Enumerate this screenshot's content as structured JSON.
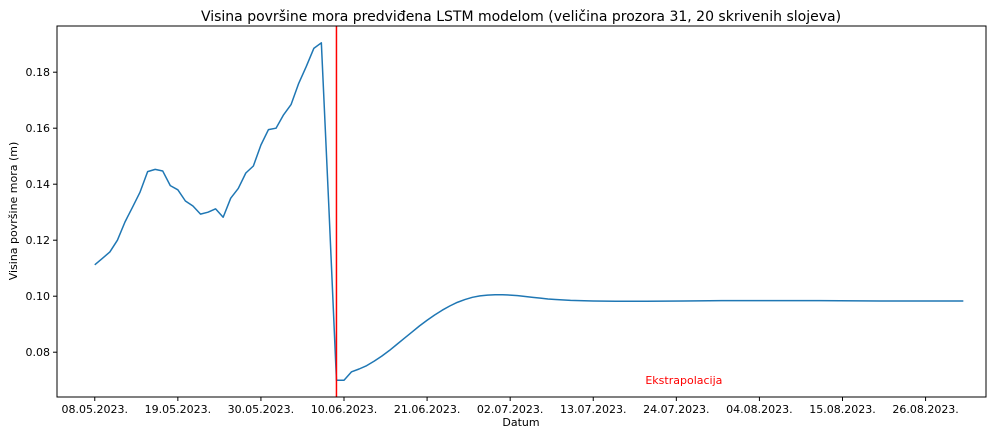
{
  "chart_data": {
    "type": "line",
    "title": "Visina površine mora predviđena LSTM modelom (veličina prozora 31, 20 skrivenih slojeva)",
    "xlabel": "Datum",
    "ylabel": "Visina površine mora (m)",
    "xlim": [
      "2023-05-03",
      "2023-09-03"
    ],
    "ylim": [
      0.064,
      0.1965
    ],
    "x_ticks": [
      {
        "date": "2023-05-08",
        "label": "08.05.2023."
      },
      {
        "date": "2023-05-19",
        "label": "19.05.2023."
      },
      {
        "date": "2023-05-30",
        "label": "30.05.2023."
      },
      {
        "date": "2023-06-10",
        "label": "10.06.2023."
      },
      {
        "date": "2023-06-21",
        "label": "21.06.2023."
      },
      {
        "date": "2023-07-02",
        "label": "02.07.2023."
      },
      {
        "date": "2023-07-13",
        "label": "13.07.2023."
      },
      {
        "date": "2023-07-24",
        "label": "24.07.2023."
      },
      {
        "date": "2023-08-04",
        "label": "04.08.2023."
      },
      {
        "date": "2023-08-15",
        "label": "15.08.2023."
      },
      {
        "date": "2023-08-26",
        "label": "26.08.2023."
      }
    ],
    "y_ticks": [
      {
        "value": 0.08,
        "label": "0.08"
      },
      {
        "value": 0.1,
        "label": "0.10"
      },
      {
        "value": 0.12,
        "label": "0.12"
      },
      {
        "value": 0.14,
        "label": "0.14"
      },
      {
        "value": 0.16,
        "label": "0.16"
      },
      {
        "value": 0.18,
        "label": "0.18"
      }
    ],
    "line_color": "#1f77b4",
    "series": [
      {
        "points": [
          [
            "2023-05-08",
            0.1112
          ],
          [
            "2023-05-09",
            0.1135
          ],
          [
            "2023-05-10",
            0.1158
          ],
          [
            "2023-05-11",
            0.12
          ],
          [
            "2023-05-12",
            0.1265
          ],
          [
            "2023-05-13",
            0.1318
          ],
          [
            "2023-05-14",
            0.1372
          ],
          [
            "2023-05-15",
            0.1445
          ],
          [
            "2023-05-16",
            0.1453
          ],
          [
            "2023-05-17",
            0.1447
          ],
          [
            "2023-05-18",
            0.1395
          ],
          [
            "2023-05-19",
            0.138
          ],
          [
            "2023-05-20",
            0.134
          ],
          [
            "2023-05-21",
            0.1322
          ],
          [
            "2023-05-22",
            0.1293
          ],
          [
            "2023-05-23",
            0.13
          ],
          [
            "2023-05-24",
            0.1312
          ],
          [
            "2023-05-25",
            0.1282
          ],
          [
            "2023-05-26",
            0.135
          ],
          [
            "2023-05-27",
            0.1385
          ],
          [
            "2023-05-28",
            0.144
          ],
          [
            "2023-05-29",
            0.1465
          ],
          [
            "2023-05-30",
            0.154
          ],
          [
            "2023-05-31",
            0.1595
          ],
          [
            "2023-06-01",
            0.16
          ],
          [
            "2023-06-02",
            0.1648
          ],
          [
            "2023-06-03",
            0.1685
          ],
          [
            "2023-06-04",
            0.176
          ],
          [
            "2023-06-05",
            0.182
          ],
          [
            "2023-06-06",
            0.1885
          ],
          [
            "2023-06-07",
            0.1905
          ],
          [
            "2023-06-08",
            0.1315
          ],
          [
            "2023-06-09",
            0.07
          ],
          [
            "2023-06-10",
            0.07
          ],
          [
            "2023-06-11",
            0.073
          ],
          [
            "2023-06-12",
            0.074
          ],
          [
            "2023-06-13",
            0.0752
          ],
          [
            "2023-06-14",
            0.0768
          ],
          [
            "2023-06-15",
            0.0786
          ],
          [
            "2023-06-16",
            0.0806
          ],
          [
            "2023-06-17",
            0.0828
          ],
          [
            "2023-06-18",
            0.085
          ],
          [
            "2023-06-19",
            0.0872
          ],
          [
            "2023-06-20",
            0.0894
          ],
          [
            "2023-06-21",
            0.0914
          ],
          [
            "2023-06-22",
            0.0933
          ],
          [
            "2023-06-23",
            0.095
          ],
          [
            "2023-06-24",
            0.0965
          ],
          [
            "2023-06-25",
            0.0978
          ],
          [
            "2023-06-26",
            0.0988
          ],
          [
            "2023-06-27",
            0.0996
          ],
          [
            "2023-06-28",
            0.1001
          ],
          [
            "2023-06-29",
            0.1004
          ],
          [
            "2023-06-30",
            0.1005
          ],
          [
            "2023-07-01",
            0.1005
          ],
          [
            "2023-07-02",
            0.1004
          ],
          [
            "2023-07-03",
            0.1002
          ],
          [
            "2023-07-04",
            0.0999
          ],
          [
            "2023-07-05",
            0.0996
          ],
          [
            "2023-07-06",
            0.0993
          ],
          [
            "2023-07-07",
            0.099
          ],
          [
            "2023-07-08",
            0.0988
          ],
          [
            "2023-07-10",
            0.0985
          ],
          [
            "2023-07-13",
            0.0983
          ],
          [
            "2023-07-16",
            0.0982
          ],
          [
            "2023-07-20",
            0.0982
          ],
          [
            "2023-07-25",
            0.0983
          ],
          [
            "2023-07-30",
            0.0984
          ],
          [
            "2023-08-05",
            0.0984
          ],
          [
            "2023-08-12",
            0.0984
          ],
          [
            "2023-08-20",
            0.0983
          ],
          [
            "2023-08-28",
            0.0983
          ],
          [
            "2023-08-31",
            0.0983
          ]
        ]
      }
    ],
    "vertical_line": {
      "date": "2023-06-09",
      "color": "#ff0000"
    },
    "annotation": {
      "text": "Ekstrapolacija",
      "date": "2023-07-25",
      "y": 0.07,
      "color": "#ff0000"
    },
    "grid": false,
    "legend": "none"
  }
}
